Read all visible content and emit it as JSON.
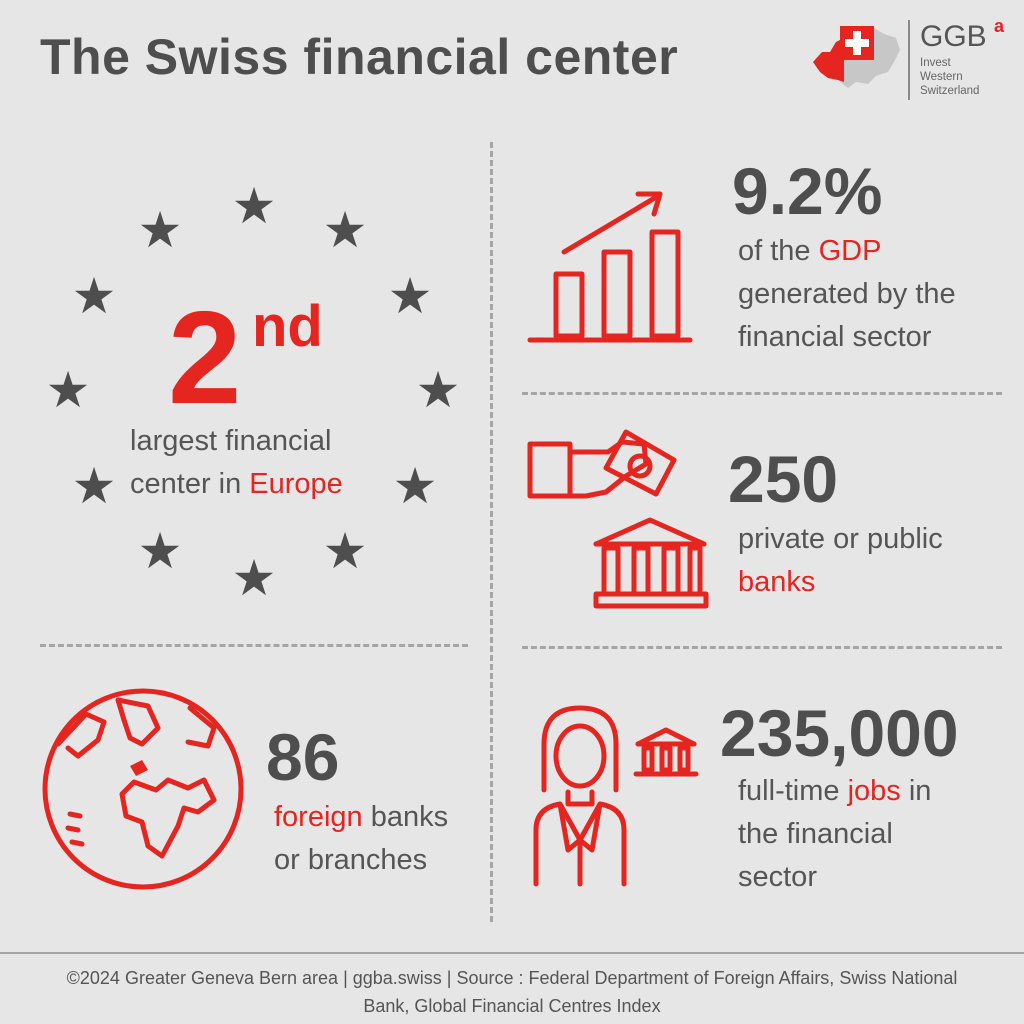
{
  "title": "The Swiss financial center",
  "logo": {
    "brand": "GGB",
    "superscript": "a",
    "line1": "Invest",
    "line2": "Western",
    "line3": "Switzerland"
  },
  "colors": {
    "accent": "#e42520",
    "text": "#555555",
    "heading": "#4e4e4e",
    "background": "#e6e6e6"
  },
  "rank": {
    "number": "2",
    "suffix": "nd",
    "line1": "largest financial",
    "line2_prefix": "center in ",
    "line2_highlight": "Europe",
    "icon": "eu-stars-icon"
  },
  "gdp": {
    "value": "9.2%",
    "line1_prefix": "of the ",
    "line1_highlight": "GDP",
    "line2": "generated by the",
    "line3": "financial sector",
    "icon": "bar-chart-growth-icon"
  },
  "banks": {
    "value": "250",
    "line1": "private or public",
    "line2_highlight": "banks",
    "icon": "hand-money-bank-icon"
  },
  "foreign": {
    "value": "86",
    "line1_highlight": "foreign",
    "line1_suffix": " banks",
    "line2": "or branches",
    "icon": "globe-icon"
  },
  "jobs": {
    "value": "235,000",
    "line1_prefix": "full-time ",
    "line1_highlight": "jobs",
    "line1_suffix": " in",
    "line2": "the financial",
    "line3": "sector",
    "icon": "employee-bank-icon"
  },
  "footer": {
    "line1": "©2024 Greater Geneva Bern area | ggba.swiss | Source : Federal Department of Foreign Affairs, Swiss National",
    "line2": "Bank, Global Financial Centres Index"
  }
}
